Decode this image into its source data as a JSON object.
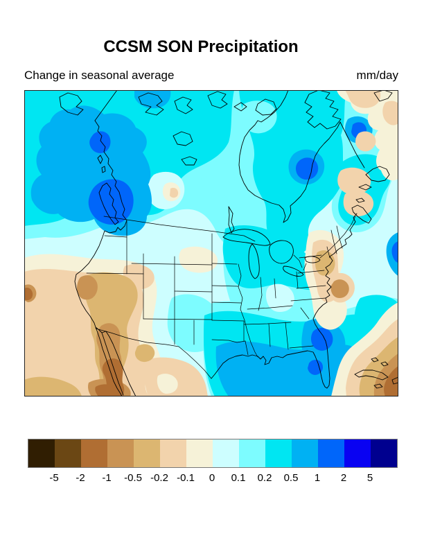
{
  "figure": {
    "title": "CCSM SON Precipitation",
    "subtitle_left": "Change in seasonal average",
    "units_label": "mm/day"
  },
  "chart_data": {
    "type": "heatmap",
    "subtype": "filled_contour_map",
    "title": "CCSM SON Precipitation",
    "subtitle": "Change in seasonal average",
    "units": "mm/day",
    "region": "North America (Canada, United States, Mexico, western Atlantic, eastern Pacific)",
    "levels": [
      -5,
      -2,
      -1,
      -0.5,
      -0.2,
      -0.1,
      0,
      0.1,
      0.2,
      0.5,
      1,
      2,
      5
    ],
    "legend_labels": [
      "-5",
      "-2",
      "-1",
      "-0.5",
      "-0.2",
      "-0.1",
      "0",
      "0.1",
      "0.2",
      "0.5",
      "1",
      "2",
      "5"
    ],
    "palette": [
      "#301e02",
      "#6b4714",
      "#b06e33",
      "#c99354",
      "#dcb671",
      "#f2d3ac",
      "#f6f2d8",
      "#cdfeff",
      "#7dfcff",
      "#00e6f2",
      "#00b1f3",
      "#0066fa",
      "#0902f2",
      "#00008f"
    ],
    "legend_position": "bottom",
    "grid": false,
    "regions_read_from_map": [
      {
        "region": "British Columbia coast / Vancouver Island",
        "value_mm_day": "+1 to +2"
      },
      {
        "region": "Alaska panhandle spot",
        "value_mm_day": "+1 to +2"
      },
      {
        "region": "Pacific Northwest and western Canada",
        "value_mm_day": "+0.5 to +1"
      },
      {
        "region": "Most of Canada and Arctic",
        "value_mm_day": "+0.2 to +0.5"
      },
      {
        "region": "Hudson Bay local maximum",
        "value_mm_day": "+1 to +2"
      },
      {
        "region": "Central Great Plains",
        "value_mm_day": "0 to +0.1"
      },
      {
        "region": "Great Lakes and Ohio Valley",
        "value_mm_day": "+0.1 to +0.5"
      },
      {
        "region": "Gulf of Mexico coast and Florida",
        "value_mm_day": "+0.5 to +2"
      },
      {
        "region": "Atlantic off Georgia coast",
        "value_mm_day": "+1 to +2"
      },
      {
        "region": "US Southwest (CA, NV, UT, AZ, NM)",
        "value_mm_day": "-0.2 to -1"
      },
      {
        "region": "Baja California and northwest Mexico",
        "value_mm_day": "-1 to -2"
      },
      {
        "region": "Caribbean southeast corner",
        "value_mm_day": "-1 to -2"
      },
      {
        "region": "Mid-Atlantic coast and New England coast",
        "value_mm_day": "-0.1 to -1"
      },
      {
        "region": "Eastern Quebec / Maritimes patches",
        "value_mm_day": "-0.1 to -0.5"
      }
    ]
  }
}
